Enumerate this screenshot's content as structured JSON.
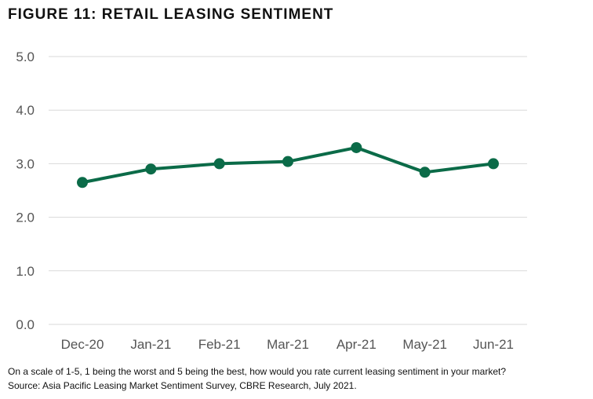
{
  "figure": {
    "title": "FIGURE 11: RETAIL LEASING SENTIMENT",
    "question": "On a scale of 1-5, 1 being the worst and 5 being the best, how would you rate current leasing sentiment in your market?",
    "source": "Source: Asia Pacific Leasing Market Sentiment Survey, CBRE Research, July 2021."
  },
  "chart_data": {
    "type": "line",
    "title": "FIGURE 11: RETAIL LEASING SENTIMENT",
    "xlabel": "",
    "ylabel": "",
    "categories": [
      "Dec-20",
      "Jan-21",
      "Feb-21",
      "Mar-21",
      "Apr-21",
      "May-21",
      "Jun-21"
    ],
    "series": [
      {
        "values": [
          2.65,
          2.9,
          3.0,
          3.04,
          3.3,
          2.84,
          3.0
        ],
        "color": "#0b6b48"
      }
    ],
    "ylim": [
      0,
      5
    ],
    "yticks": [
      "0.0",
      "1.0",
      "2.0",
      "3.0",
      "4.0",
      "5.0"
    ],
    "grid": true,
    "grid_color": "#d9d9d9",
    "legend": "none"
  }
}
